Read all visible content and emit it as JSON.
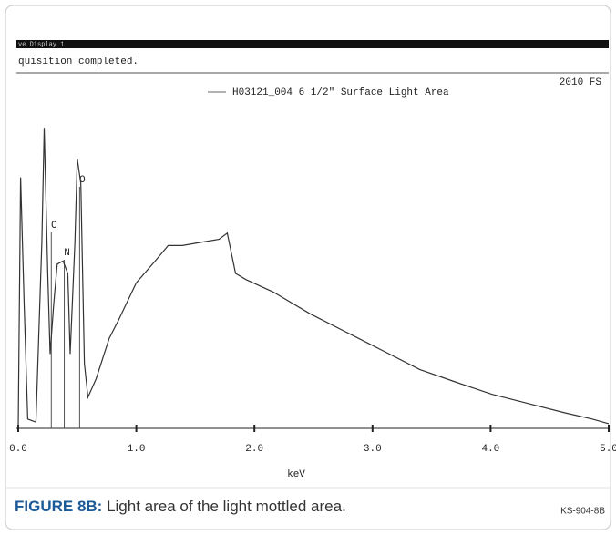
{
  "header": {
    "window_title": "ve Display 1",
    "status": "quisition completed.",
    "corner": "2010 FS"
  },
  "chart_data": {
    "type": "line",
    "x_label": "keV",
    "series": [
      {
        "name": "H03121_004  6 1/2\" Surface Light Area",
        "color": "#333333",
        "x": [
          0.0,
          0.02,
          0.05,
          0.08,
          0.15,
          0.2,
          0.22,
          0.25,
          0.27,
          0.3,
          0.33,
          0.38,
          0.42,
          0.44,
          0.48,
          0.5,
          0.53,
          0.56,
          0.59,
          0.66,
          0.77,
          0.85,
          1.0,
          1.16,
          1.27,
          1.39,
          1.54,
          1.7,
          1.77,
          1.84,
          1.93,
          2.16,
          2.47,
          2.78,
          3.09,
          3.4,
          3.7,
          4.01,
          4.32,
          4.63,
          4.86,
          5.0
        ],
        "values": [
          0,
          81,
          40,
          3,
          2,
          60,
          97,
          50,
          24,
          40,
          53,
          54,
          50,
          24,
          60,
          87,
          79,
          21,
          10,
          16,
          29,
          35,
          47,
          54,
          59,
          59,
          60,
          61,
          63,
          50,
          48,
          44,
          37,
          31,
          25,
          19,
          15,
          11,
          8,
          5,
          3,
          1.5
        ]
      }
    ],
    "peak_labels": [
      {
        "label": "C",
        "x": 0.28
      },
      {
        "label": "N",
        "x": 0.39
      },
      {
        "label": "O",
        "x": 0.52
      }
    ],
    "xlim": [
      0,
      5
    ],
    "ylim": [
      0,
      100
    ],
    "xticks": [
      {
        "value": 0,
        "label": "0.0"
      },
      {
        "value": 1,
        "label": "1.0"
      },
      {
        "value": 2,
        "label": "2.0"
      },
      {
        "value": 3,
        "label": "3.0"
      },
      {
        "value": 4,
        "label": "4.0"
      },
      {
        "value": 5,
        "label": "5.0"
      }
    ]
  },
  "caption": {
    "label": "FIGURE 8B:",
    "text": " Light area of the light mottled area.",
    "code": "KS-904-8B"
  }
}
